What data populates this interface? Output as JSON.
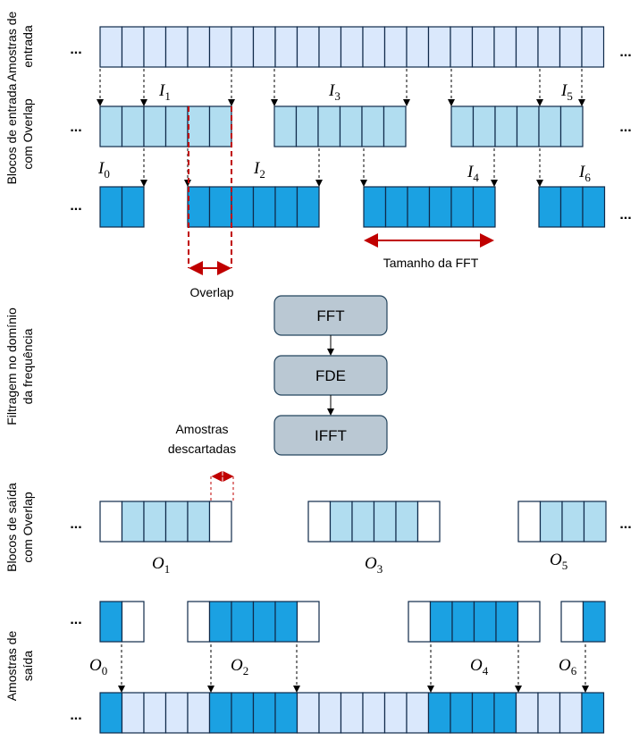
{
  "row_labels": [
    [
      "Amostras de",
      "entrada"
    ],
    [
      "Blocos de entrada",
      "com Overlap"
    ],
    [
      "Filtragem no domínio",
      "da frequência"
    ],
    [
      "Blocos de saída",
      "com Overlap"
    ],
    [
      "Amostras de",
      "saída"
    ]
  ],
  "ellipsis": "...",
  "input_labels": [
    {
      "symbol": "I",
      "index": "0"
    },
    {
      "symbol": "I",
      "index": "1"
    },
    {
      "symbol": "I",
      "index": "2"
    },
    {
      "symbol": "I",
      "index": "3"
    },
    {
      "symbol": "I",
      "index": "4"
    },
    {
      "symbol": "I",
      "index": "5"
    },
    {
      "symbol": "I",
      "index": "6"
    }
  ],
  "output_labels": [
    {
      "symbol": "O",
      "index": "0"
    },
    {
      "symbol": "O",
      "index": "1"
    },
    {
      "symbol": "O",
      "index": "2"
    },
    {
      "symbol": "O",
      "index": "3"
    },
    {
      "symbol": "O",
      "index": "4"
    },
    {
      "symbol": "O",
      "index": "5"
    },
    {
      "symbol": "O",
      "index": "6"
    }
  ],
  "annotations": {
    "overlap": "Overlap",
    "fft_size": "Tamanho da FFT",
    "discarded": [
      "Amostras",
      "descartadas"
    ]
  },
  "processing": [
    "FFT",
    "FDE",
    "IFFT"
  ]
}
